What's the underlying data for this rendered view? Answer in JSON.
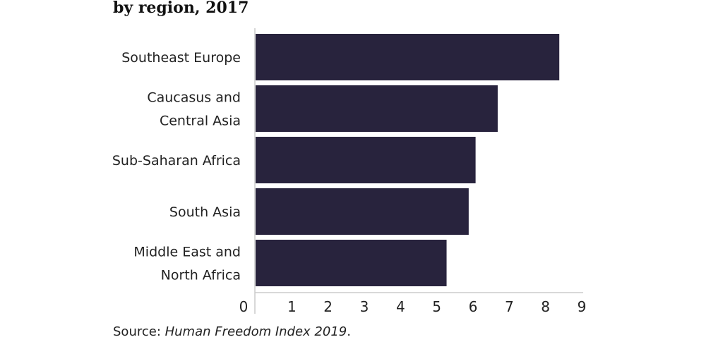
{
  "chart_data": {
    "type": "bar",
    "orientation": "horizontal",
    "title": "by region, 2017",
    "categories": [
      [
        "Southeast Europe"
      ],
      [
        "Caucasus and",
        "Central Asia"
      ],
      [
        "Sub-Saharan Africa"
      ],
      [
        "South Asia"
      ],
      [
        "Middle East and",
        "North Africa"
      ]
    ],
    "values": [
      8.38,
      6.68,
      6.07,
      5.88,
      5.27
    ],
    "xlim": [
      0,
      9
    ],
    "xticks": [
      "0",
      "1",
      "2",
      "3",
      "4",
      "5",
      "6",
      "7",
      "8",
      "9"
    ],
    "xlabel": "",
    "ylabel": "",
    "grid": false,
    "bar_color": "#28233d",
    "axis_color": "#cccccc"
  },
  "source": {
    "prefix": "Source: ",
    "title": "Human Freedom Index 2019",
    "suffix": "."
  }
}
